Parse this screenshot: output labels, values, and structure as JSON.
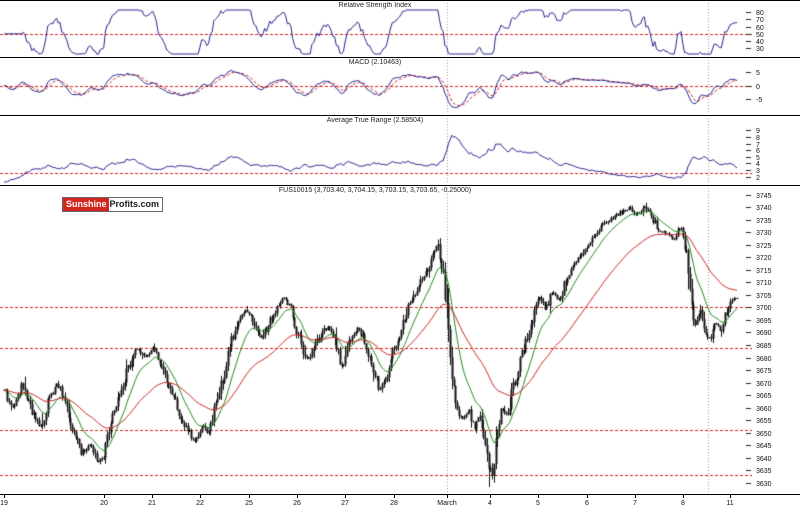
{
  "logo": {
    "part1": "Sunshine",
    "part2": "Profits.com",
    "accent_color": "#d4281e"
  },
  "chart_data": [
    {
      "id": "rsi",
      "type": "line",
      "title": "Relative Strength Index",
      "ylim": [
        22,
        83
      ],
      "yticks": [
        80,
        70,
        60,
        50,
        40,
        30
      ],
      "ref_level": 50,
      "line_color": "#23238e",
      "ref_color": "#dd2222",
      "legend_position": "none",
      "grid": false
    },
    {
      "id": "macd",
      "type": "line",
      "title": "MACD (2.10463)",
      "current_value": 2.10463,
      "ylim": [
        -10,
        7
      ],
      "yticks": [
        5,
        0,
        -5
      ],
      "ref_level": 0,
      "line_color": "#23238e",
      "signal_color": "#cc2222",
      "ref_color": "#dd2222",
      "grid": false
    },
    {
      "id": "atr",
      "type": "line",
      "title": "Average True Range (2.58504)",
      "current_value": 2.58504,
      "ylim": [
        1.2,
        9.8
      ],
      "yticks": [
        9,
        8,
        7,
        6,
        5,
        4,
        3,
        2
      ],
      "ref_level": 2.585,
      "line_color": "#23238e",
      "ref_color": "#dd2222",
      "grid": false
    },
    {
      "id": "price",
      "type": "candlestick",
      "title": "FUS10015 (3,703.40, 3,704.15, 3,703.15, 3,703.65, -0.25000)",
      "quote": {
        "open": "3,703.40",
        "high": "3,704.15",
        "low": "3,703.15",
        "close": "3,703.65",
        "change": "-0.25000"
      },
      "ylim": [
        3628,
        3746
      ],
      "ytick_min": 3630,
      "ytick_max": 3745,
      "ytick_step": 5,
      "support_resistance_levels": [
        3700,
        3684,
        3651,
        3633
      ],
      "support_color": "#dd2222",
      "candle_color": "#141414",
      "ma_fast": {
        "period": 14,
        "color": "#1e8c1e"
      },
      "ma_slow": {
        "period": 50,
        "color": "#cc2222"
      },
      "session_vlines": [
        0.604,
        0.96
      ],
      "xlabels": [
        {
          "label": "19",
          "f": 0.0
        },
        {
          "label": "20",
          "f": 0.136
        },
        {
          "label": "21",
          "f": 0.202
        },
        {
          "label": "22",
          "f": 0.267
        },
        {
          "label": "25",
          "f": 0.334
        },
        {
          "label": "26",
          "f": 0.4
        },
        {
          "label": "27",
          "f": 0.465
        },
        {
          "label": "28",
          "f": 0.532
        },
        {
          "label": "March",
          "f": 0.604
        },
        {
          "label": "4",
          "f": 0.663
        },
        {
          "label": "5",
          "f": 0.728
        },
        {
          "label": "6",
          "f": 0.795
        },
        {
          "label": "7",
          "f": 0.861
        },
        {
          "label": "8",
          "f": 0.926
        },
        {
          "label": "11",
          "f": 0.991
        }
      ],
      "candles": 420,
      "seed": 20130311,
      "anchors": [
        [
          0.0,
          3667
        ],
        [
          0.012,
          3660
        ],
        [
          0.025,
          3670
        ],
        [
          0.038,
          3658
        ],
        [
          0.05,
          3652
        ],
        [
          0.06,
          3663
        ],
        [
          0.072,
          3670
        ],
        [
          0.085,
          3660
        ],
        [
          0.095,
          3650
        ],
        [
          0.105,
          3642
        ],
        [
          0.118,
          3646
        ],
        [
          0.128,
          3638
        ],
        [
          0.136,
          3642
        ],
        [
          0.148,
          3656
        ],
        [
          0.16,
          3668
        ],
        [
          0.172,
          3678
        ],
        [
          0.182,
          3684
        ],
        [
          0.192,
          3680
        ],
        [
          0.202,
          3684
        ],
        [
          0.214,
          3677
        ],
        [
          0.226,
          3668
        ],
        [
          0.238,
          3659
        ],
        [
          0.25,
          3651
        ],
        [
          0.26,
          3647
        ],
        [
          0.27,
          3653
        ],
        [
          0.278,
          3649
        ],
        [
          0.29,
          3662
        ],
        [
          0.3,
          3674
        ],
        [
          0.31,
          3686
        ],
        [
          0.32,
          3694
        ],
        [
          0.33,
          3699
        ],
        [
          0.34,
          3694
        ],
        [
          0.35,
          3687
        ],
        [
          0.36,
          3693
        ],
        [
          0.372,
          3700
        ],
        [
          0.382,
          3704
        ],
        [
          0.392,
          3699
        ],
        [
          0.402,
          3688
        ],
        [
          0.412,
          3679
        ],
        [
          0.422,
          3683
        ],
        [
          0.432,
          3689
        ],
        [
          0.442,
          3693
        ],
        [
          0.452,
          3687
        ],
        [
          0.462,
          3675
        ],
        [
          0.472,
          3687
        ],
        [
          0.482,
          3692
        ],
        [
          0.492,
          3687
        ],
        [
          0.502,
          3677
        ],
        [
          0.512,
          3667
        ],
        [
          0.522,
          3673
        ],
        [
          0.532,
          3684
        ],
        [
          0.542,
          3692
        ],
        [
          0.552,
          3700
        ],
        [
          0.562,
          3707
        ],
        [
          0.572,
          3712
        ],
        [
          0.582,
          3719
        ],
        [
          0.591,
          3726
        ],
        [
          0.598,
          3714
        ],
        [
          0.605,
          3696
        ],
        [
          0.612,
          3668
        ],
        [
          0.619,
          3657
        ],
        [
          0.627,
          3655
        ],
        [
          0.634,
          3660
        ],
        [
          0.641,
          3651
        ],
        [
          0.648,
          3657
        ],
        [
          0.655,
          3647
        ],
        [
          0.661,
          3638
        ],
        [
          0.666,
          3634
        ],
        [
          0.671,
          3646
        ],
        [
          0.678,
          3660
        ],
        [
          0.686,
          3657
        ],
        [
          0.694,
          3668
        ],
        [
          0.703,
          3677
        ],
        [
          0.713,
          3688
        ],
        [
          0.722,
          3697
        ],
        [
          0.73,
          3704
        ],
        [
          0.738,
          3699
        ],
        [
          0.747,
          3706
        ],
        [
          0.756,
          3702
        ],
        [
          0.766,
          3711
        ],
        [
          0.776,
          3717
        ],
        [
          0.786,
          3721
        ],
        [
          0.796,
          3725
        ],
        [
          0.806,
          3729
        ],
        [
          0.818,
          3733
        ],
        [
          0.83,
          3736
        ],
        [
          0.842,
          3738
        ],
        [
          0.853,
          3740
        ],
        [
          0.863,
          3737
        ],
        [
          0.873,
          3740
        ],
        [
          0.883,
          3736
        ],
        [
          0.893,
          3731
        ],
        [
          0.903,
          3729
        ],
        [
          0.913,
          3727
        ],
        [
          0.923,
          3732
        ],
        [
          0.93,
          3724
        ],
        [
          0.936,
          3703
        ],
        [
          0.942,
          3693
        ],
        [
          0.949,
          3699
        ],
        [
          0.956,
          3689
        ],
        [
          0.963,
          3687
        ],
        [
          0.97,
          3694
        ],
        [
          0.977,
          3690
        ],
        [
          0.984,
          3697
        ],
        [
          0.991,
          3702
        ],
        [
          1.0,
          3703.65
        ]
      ]
    }
  ]
}
